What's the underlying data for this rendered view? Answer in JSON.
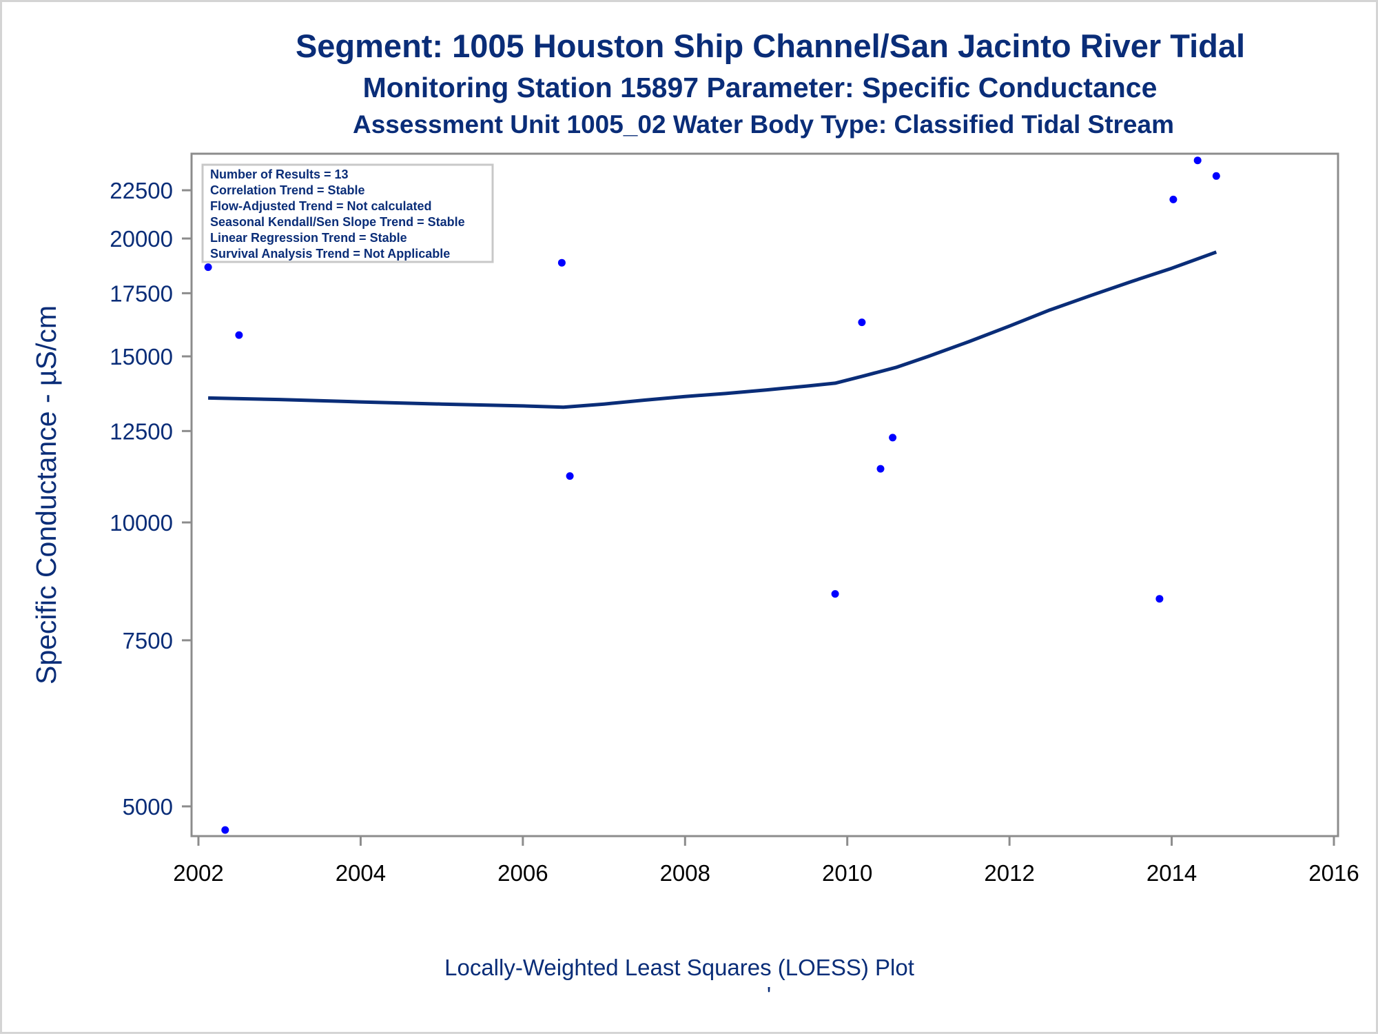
{
  "titles": {
    "line1": "Segment: 1005  Houston Ship Channel/San Jacinto River Tidal",
    "line2": "Monitoring Station 15897 Parameter: Specific Conductance",
    "line3": "Assessment Unit 1005_02   Water Body Type: Classified Tidal Stream"
  },
  "stats_box": {
    "lines": [
      "Number of Results = 13",
      "Correlation Trend = Stable",
      "Flow-Adjusted Trend = Not calculated",
      "Seasonal Kendall/Sen Slope Trend = Stable",
      "Linear Regression Trend = Stable",
      "Survival Analysis Trend = Not Applicable"
    ]
  },
  "footnote": {
    "main": "Locally-Weighted Least Squares (LOESS) Plot",
    "mark": "'"
  },
  "colors": {
    "text": "#0a2d78",
    "points": "#0000ff",
    "loess": "#0a2d78",
    "axes": "#8c8c8c"
  },
  "chart_data": {
    "type": "scatter",
    "ylabel": "Specific Conductance -  µS/cm",
    "xlabel": "",
    "y_scale": "log",
    "xlim": [
      2002,
      2016
    ],
    "ylim": [
      4650,
      24600
    ],
    "x_ticks": [
      2002,
      2004,
      2006,
      2008,
      2010,
      2012,
      2014,
      2016
    ],
    "y_ticks": [
      5000,
      7500,
      10000,
      12500,
      15000,
      17500,
      20000,
      22500
    ],
    "grid": false,
    "points": [
      {
        "x": 2002.12,
        "y": 18650
      },
      {
        "x": 2002.33,
        "y": 4720
      },
      {
        "x": 2002.5,
        "y": 15800
      },
      {
        "x": 2006.48,
        "y": 18850
      },
      {
        "x": 2006.58,
        "y": 11200
      },
      {
        "x": 2009.85,
        "y": 8400
      },
      {
        "x": 2010.18,
        "y": 16300
      },
      {
        "x": 2010.41,
        "y": 11400
      },
      {
        "x": 2010.56,
        "y": 12300
      },
      {
        "x": 2013.85,
        "y": 8300
      },
      {
        "x": 2014.02,
        "y": 22000
      },
      {
        "x": 2014.32,
        "y": 24200
      },
      {
        "x": 2014.55,
        "y": 23300
      }
    ],
    "loess": [
      {
        "x": 2002.12,
        "y": 13550
      },
      {
        "x": 2003.0,
        "y": 13500
      },
      {
        "x": 2004.0,
        "y": 13420
      },
      {
        "x": 2005.0,
        "y": 13350
      },
      {
        "x": 2006.0,
        "y": 13290
      },
      {
        "x": 2006.5,
        "y": 13250
      },
      {
        "x": 2007.0,
        "y": 13350
      },
      {
        "x": 2007.5,
        "y": 13480
      },
      {
        "x": 2008.0,
        "y": 13600
      },
      {
        "x": 2008.5,
        "y": 13700
      },
      {
        "x": 2009.0,
        "y": 13820
      },
      {
        "x": 2009.5,
        "y": 13950
      },
      {
        "x": 2009.85,
        "y": 14050
      },
      {
        "x": 2010.2,
        "y": 14300
      },
      {
        "x": 2010.6,
        "y": 14600
      },
      {
        "x": 2011.0,
        "y": 15000
      },
      {
        "x": 2011.5,
        "y": 15550
      },
      {
        "x": 2012.0,
        "y": 16150
      },
      {
        "x": 2012.5,
        "y": 16800
      },
      {
        "x": 2013.0,
        "y": 17400
      },
      {
        "x": 2013.5,
        "y": 18000
      },
      {
        "x": 2014.0,
        "y": 18600
      },
      {
        "x": 2014.55,
        "y": 19350
      }
    ]
  }
}
